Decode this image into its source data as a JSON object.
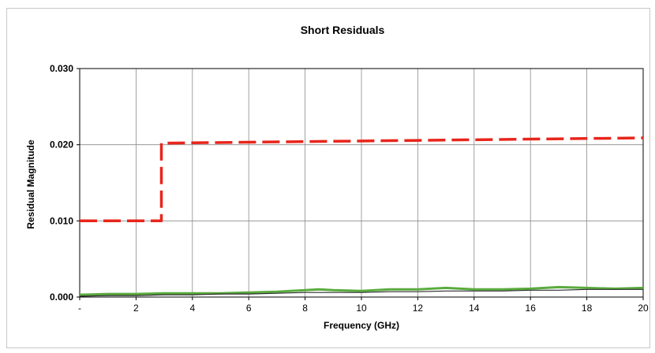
{
  "chart_data": {
    "type": "line",
    "title": "Short Residuals",
    "xlabel": "Frequency (GHz)",
    "ylabel": "Residual Magnitude",
    "xlim": [
      0,
      20
    ],
    "ylim": [
      0,
      0.03
    ],
    "x_ticks": [
      {
        "value": 0,
        "label": "-"
      },
      {
        "value": 2,
        "label": "2"
      },
      {
        "value": 4,
        "label": "4"
      },
      {
        "value": 6,
        "label": "6"
      },
      {
        "value": 8,
        "label": "8"
      },
      {
        "value": 10,
        "label": "10"
      },
      {
        "value": 12,
        "label": "12"
      },
      {
        "value": 14,
        "label": "14"
      },
      {
        "value": 16,
        "label": "16"
      },
      {
        "value": 18,
        "label": "18"
      },
      {
        "value": 20,
        "label": "20"
      }
    ],
    "y_ticks": [
      {
        "value": 0,
        "label": "0.000"
      },
      {
        "value": 0.01,
        "label": "0.010"
      },
      {
        "value": 0.02,
        "label": "0.020"
      },
      {
        "value": 0.03,
        "label": "0.030"
      }
    ],
    "grid": true,
    "legend": "none",
    "series": [
      {
        "style": "dashed",
        "color": "#e8251b",
        "x": [
          0,
          2.9,
          2.9,
          20
        ],
        "y": [
          0.01,
          0.01,
          0.0202,
          0.0209
        ]
      },
      {
        "style": "solid",
        "color": "#5aab3e",
        "x": [
          0,
          1,
          2,
          3,
          4,
          5,
          6,
          7,
          8,
          8.5,
          9,
          10,
          11,
          12,
          13,
          14,
          15,
          16,
          17,
          18,
          19,
          20
        ],
        "y": [
          0.0003,
          0.0004,
          0.0004,
          0.0005,
          0.0005,
          0.0005,
          0.0006,
          0.0007,
          0.0009,
          0.001,
          0.0009,
          0.0008,
          0.001,
          0.001,
          0.0012,
          0.001,
          0.001,
          0.0011,
          0.0013,
          0.0012,
          0.0011,
          0.0012
        ]
      },
      {
        "style": "solid",
        "color": "#2c2c2c",
        "x": [
          0,
          1,
          2,
          3,
          4,
          5,
          6,
          7,
          8,
          9,
          10,
          11,
          12,
          13,
          14,
          15,
          16,
          17,
          18,
          19,
          20
        ],
        "y": [
          0.0001,
          0.0002,
          0.0002,
          0.0003,
          0.0003,
          0.0004,
          0.0004,
          0.0005,
          0.0006,
          0.0006,
          0.0006,
          0.0007,
          0.0007,
          0.0008,
          0.0008,
          0.0008,
          0.0009,
          0.0009,
          0.001,
          0.001,
          0.001
        ]
      }
    ]
  }
}
